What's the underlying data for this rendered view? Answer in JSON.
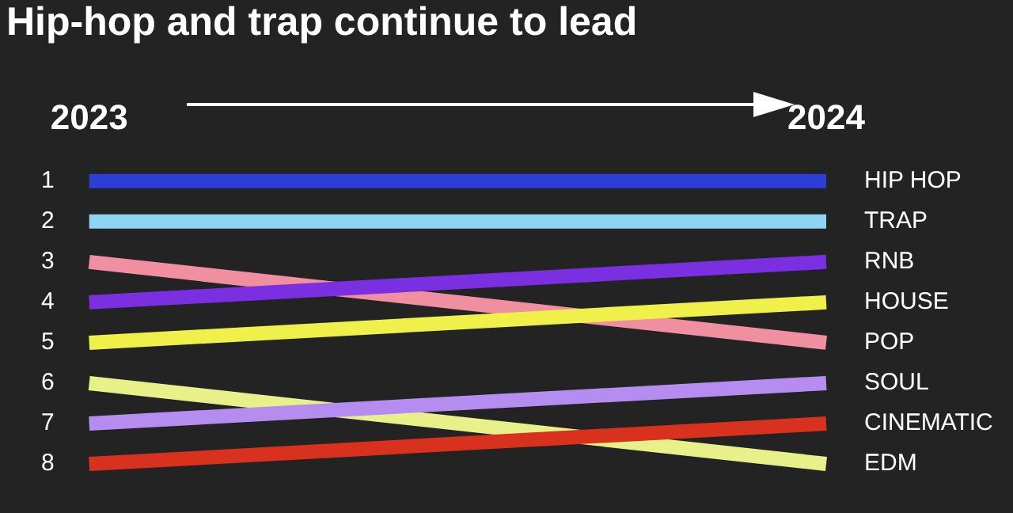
{
  "chart_data": {
    "type": "line",
    "title": "Hip-hop and trap continue to lead",
    "categories": [
      "2023",
      "2024"
    ],
    "series": [
      {
        "name": "HIP HOP",
        "color": "#2b3fd6",
        "values": [
          1,
          1
        ]
      },
      {
        "name": "TRAP",
        "color": "#8fd3f5",
        "values": [
          2,
          2
        ]
      },
      {
        "name": "RNB",
        "color": "#7a2fe0",
        "values": [
          4,
          3
        ]
      },
      {
        "name": "HOUSE",
        "color": "#f0f04a",
        "values": [
          5,
          4
        ]
      },
      {
        "name": "POP",
        "color": "#f08fa0",
        "values": [
          3,
          5
        ]
      },
      {
        "name": "SOUL",
        "color": "#b58cf0",
        "values": [
          7,
          6
        ]
      },
      {
        "name": "CINEMATIC",
        "color": "#d8321e",
        "values": [
          8,
          7
        ]
      },
      {
        "name": "EDM",
        "color": "#e8f08a",
        "values": [
          6,
          8
        ]
      }
    ],
    "ylim": [
      8,
      1
    ],
    "yticks": [
      1,
      2,
      3,
      4,
      5,
      6,
      7,
      8
    ],
    "legend": false,
    "marker": "none",
    "line_style": "solid"
  }
}
